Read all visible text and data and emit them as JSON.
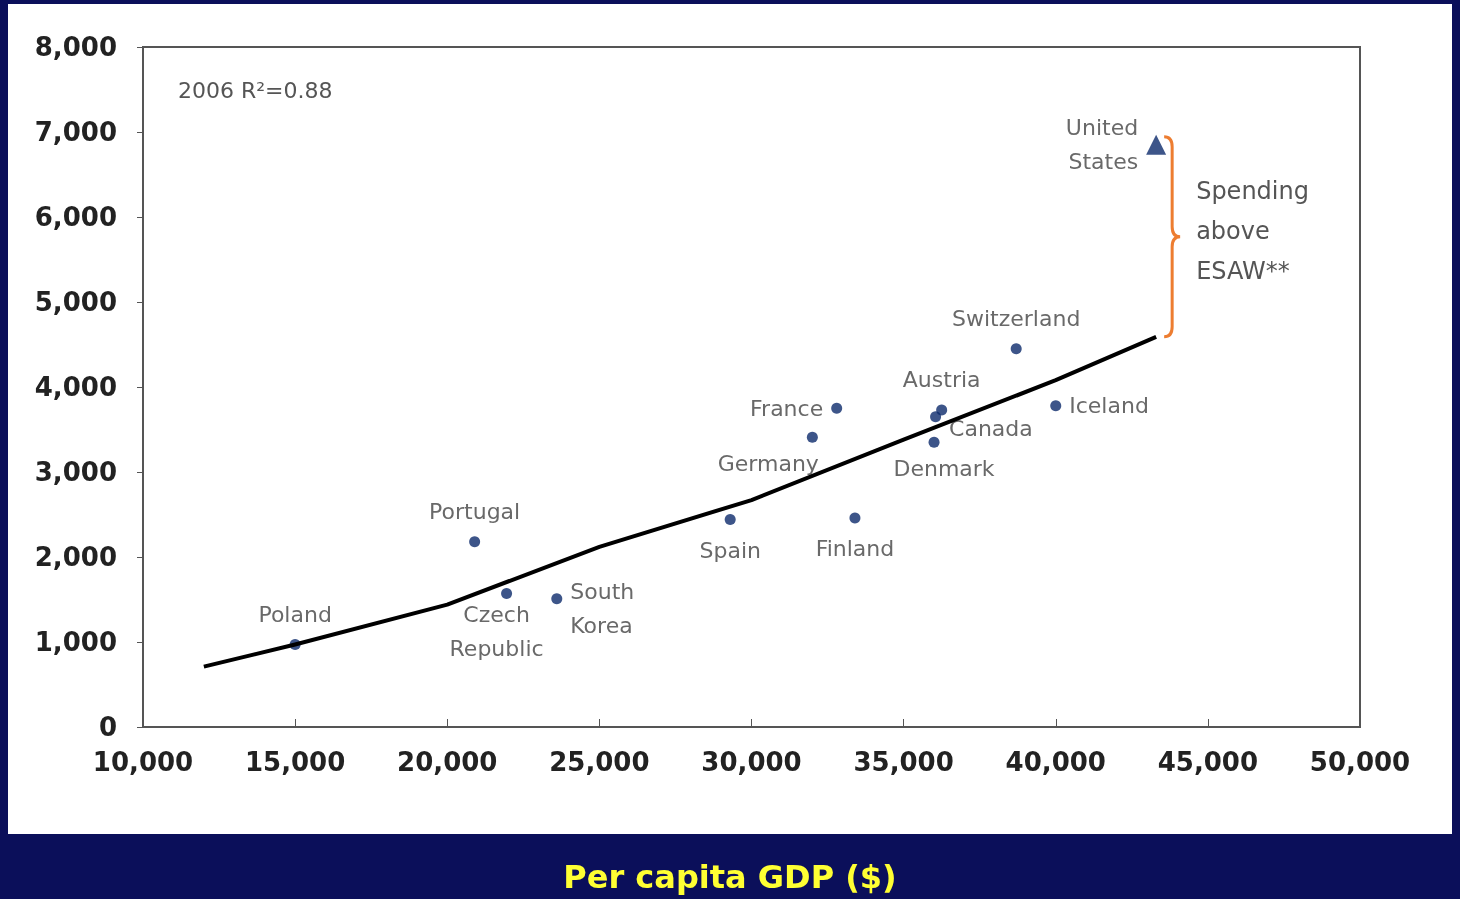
{
  "chart_data": {
    "type": "scatter",
    "xlabel": "Per capita GDP ($)",
    "xlim": [
      10000,
      50000
    ],
    "xticks": [
      {
        "value": 10000,
        "label": "10,000"
      },
      {
        "value": 15000,
        "label": "15,000"
      },
      {
        "value": 20000,
        "label": "20,000"
      },
      {
        "value": 25000,
        "label": "25,000"
      },
      {
        "value": 30000,
        "label": "30,000"
      },
      {
        "value": 35000,
        "label": "35,000"
      },
      {
        "value": 40000,
        "label": "40,000"
      },
      {
        "value": 45000,
        "label": "45,000"
      },
      {
        "value": 50000,
        "label": "50,000"
      }
    ],
    "ylim": [
      0,
      8000
    ],
    "yticks": [
      0,
      {
        "value": 1000,
        "label": "1,000"
      },
      {
        "value": 2000,
        "label": "2,000"
      },
      {
        "value": 3000,
        "label": "3,000"
      },
      {
        "value": 4000,
        "label": "4,000"
      },
      {
        "value": 5000,
        "label": "5,000"
      },
      {
        "value": 6000,
        "label": "6,000"
      },
      {
        "value": 7000,
        "label": "7,000"
      },
      {
        "value": 8000,
        "label": "8,000"
      }
    ],
    "grid": false,
    "legend": false,
    "marker": "circle",
    "annotations": [
      "2006 R²=0.88",
      "Spending above ESAW**"
    ],
    "series": [
      {
        "name": "Poland",
        "color": "#0d2a6b",
        "x": [
          15000
        ],
        "values": [
          970
        ]
      },
      {
        "name": "Portugal",
        "color": "#0d2a6b",
        "x": [
          20900
        ],
        "values": [
          2180
        ]
      },
      {
        "name": "Czech Republic",
        "color": "#0d2a6b",
        "x": [
          21950
        ],
        "values": [
          1570
        ]
      },
      {
        "name": "South Korea",
        "color": "#0d2a6b",
        "x": [
          23600
        ],
        "values": [
          1510
        ]
      },
      {
        "name": "Spain",
        "color": "#0d2a6b",
        "x": [
          29300
        ],
        "values": [
          2440
        ]
      },
      {
        "name": "Germany",
        "color": "#0d2a6b",
        "x": [
          32000
        ],
        "values": [
          3410
        ]
      },
      {
        "name": "France",
        "color": "#0d2a6b",
        "x": [
          32800
        ],
        "values": [
          3750
        ]
      },
      {
        "name": "Finland",
        "color": "#0d2a6b",
        "x": [
          33400
        ],
        "values": [
          2460
        ]
      },
      {
        "name": "Austria",
        "color": "#0d2a6b",
        "x": [
          36250
        ],
        "values": [
          3730
        ]
      },
      {
        "name": "Canada",
        "color": "#0d2a6b",
        "x": [
          36050
        ],
        "values": [
          3650
        ]
      },
      {
        "name": "Denmark",
        "color": "#0d2a6b",
        "x": [
          36000
        ],
        "values": [
          3350
        ]
      },
      {
        "name": "Switzerland",
        "color": "#0d2a6b",
        "x": [
          38700
        ],
        "values": [
          4450
        ]
      },
      {
        "name": "Iceland",
        "color": "#0d2a6b",
        "x": [
          40000
        ],
        "values": [
          3780
        ]
      },
      {
        "name": "United States",
        "color": "#0d2a6b",
        "x": [
          43300
        ],
        "values": [
          6850
        ],
        "marker": "triangle"
      },
      {
        "type": "line",
        "color": "#000000",
        "marker": "none",
        "x": [
          12000,
          15000,
          20000,
          25000,
          30000,
          35000,
          40000,
          43300
        ],
        "values": [
          710,
          970,
          1440,
          2120,
          2670,
          3380,
          4080,
          4590
        ]
      }
    ]
  }
}
